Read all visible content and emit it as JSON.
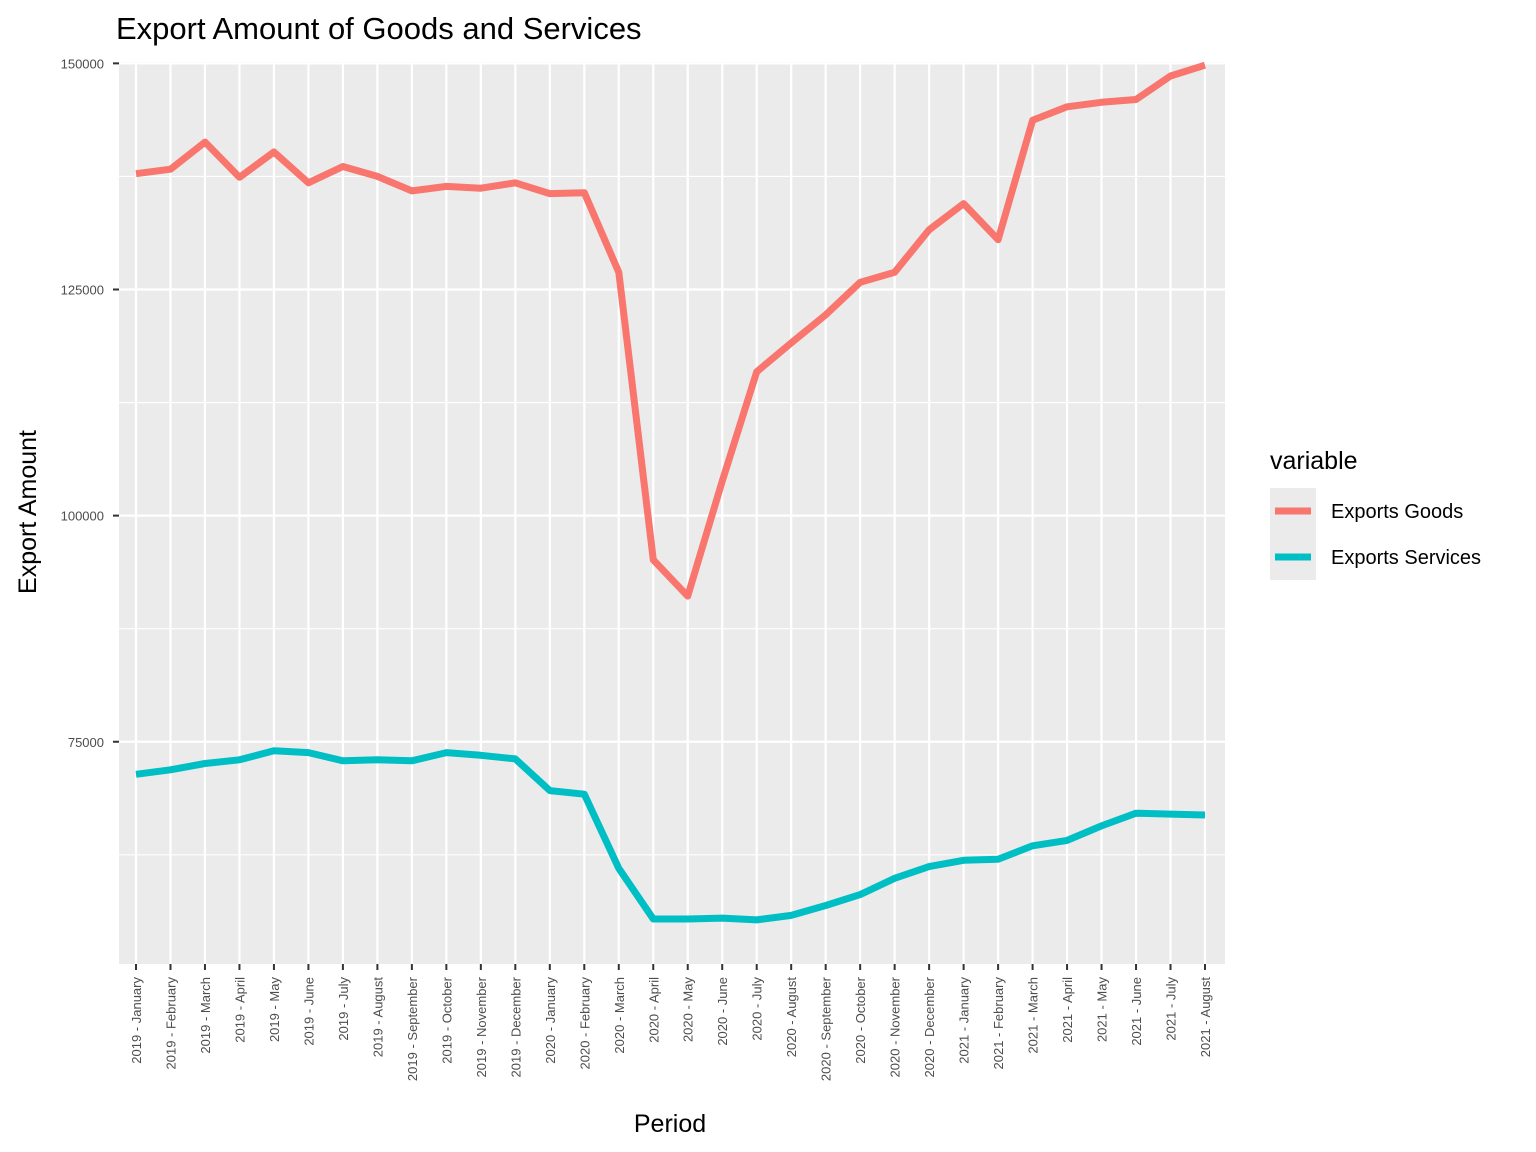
{
  "chart_data": {
    "type": "line",
    "title": "Export Amount of Goods and Services",
    "xlabel": "Period",
    "ylabel": "Export Amount",
    "categories": [
      "2019 - January",
      "2019 - February",
      "2019 - March",
      "2019 - April",
      "2019 - May",
      "2019 - June",
      "2019 - July",
      "2019 - August",
      "2019 - September",
      "2019 - October",
      "2019 - November",
      "2019 - December",
      "2020 - January",
      "2020 - February",
      "2020 - March",
      "2020 - April",
      "2020 - May",
      "2020 - June",
      "2020 - July",
      "2020 - August",
      "2020 - September",
      "2020 - October",
      "2020 - November",
      "2020 - December",
      "2021 - January",
      "2021 - February",
      "2021 - March",
      "2021 - April",
      "2021 - May",
      "2021 - June",
      "2021 - July",
      "2021 - August"
    ],
    "series": [
      {
        "name": "Exports Goods",
        "color": "#F8766D",
        "values": [
          137800,
          138300,
          141300,
          137400,
          140200,
          136800,
          138600,
          137500,
          135900,
          136400,
          136200,
          136800,
          135600,
          135700,
          126900,
          95100,
          91100,
          103800,
          115900,
          119100,
          122200,
          125800,
          126900,
          131600,
          134500,
          130500,
          143700,
          145200,
          145700,
          146000,
          148600,
          149800
        ]
      },
      {
        "name": "Exports Services",
        "color": "#00BFC4",
        "values": [
          71400,
          71900,
          72600,
          73000,
          74000,
          73800,
          72900,
          73000,
          72900,
          73800,
          73500,
          73100,
          69600,
          69200,
          61000,
          55400,
          55400,
          55500,
          55300,
          55800,
          56900,
          58100,
          59900,
          61200,
          61900,
          62000,
          63500,
          64100,
          65700,
          67100,
          67000,
          66900
        ]
      }
    ],
    "y_ticks": [
      "75000",
      "100000",
      "125000",
      "150000"
    ],
    "y_tick_values": [
      75000,
      100000,
      125000,
      150000
    ],
    "ylim": [
      50430,
      150150
    ],
    "grid": true,
    "legend": {
      "title": "variable",
      "position": "right"
    }
  }
}
